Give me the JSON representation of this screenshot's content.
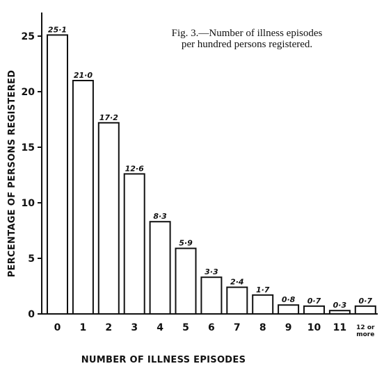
{
  "chart_data": {
    "type": "bar",
    "title": "Fig. 3.—Number of illness episodes",
    "subtitle": "per hundred persons registered.",
    "xlabel": "NUMBER OF ILLNESS EPISODES",
    "ylabel": "PERCENTAGE OF PERSONS REGISTERED",
    "categories": [
      "0",
      "1",
      "2",
      "3",
      "4",
      "5",
      "6",
      "7",
      "8",
      "9",
      "10",
      "11",
      "12 or more"
    ],
    "values": [
      25.1,
      21.0,
      17.2,
      12.6,
      8.3,
      5.9,
      3.3,
      2.4,
      1.7,
      0.8,
      0.7,
      0.3,
      0.7
    ],
    "data_labels": [
      "25·1",
      "21·0",
      "17·2",
      "12·6",
      "8·3",
      "5·9",
      "3·3",
      "2·4",
      "1·7",
      "0·8",
      "0·7",
      "0·3",
      "0·7"
    ],
    "yticks": [
      "0",
      "5",
      "10",
      "15",
      "20",
      "25"
    ],
    "ylim": [
      0,
      26.5
    ],
    "grid": false,
    "colors": {
      "bar_fill": "#ffffff",
      "bar_stroke": "#111111"
    }
  }
}
